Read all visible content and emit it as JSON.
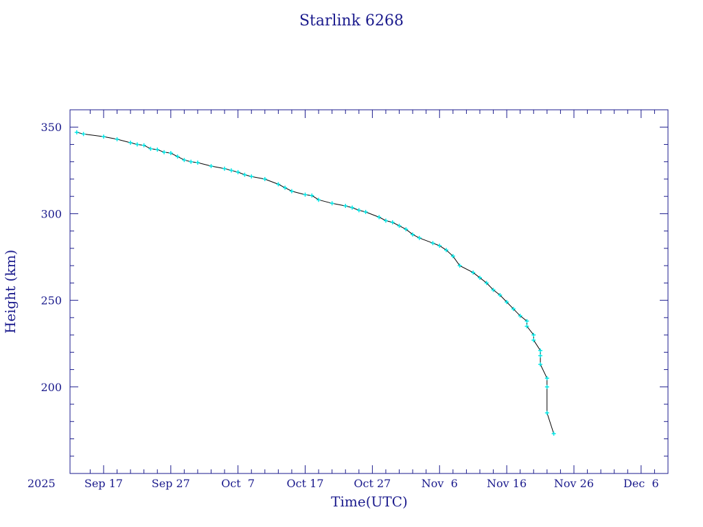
{
  "chart_data": {
    "type": "line",
    "title": "Starlink 6268",
    "xlabel": "Time(UTC)",
    "ylabel": "Height (km)",
    "x_start_label": "2025",
    "xlim": [
      "2025-09-12",
      "2025-12-10"
    ],
    "ylim": [
      150,
      360
    ],
    "x_ticks": [
      {
        "date": "2025-09-17",
        "label": "Sep 17"
      },
      {
        "date": "2025-09-27",
        "label": "Sep 27"
      },
      {
        "date": "2025-10-07",
        "label": "Oct  7"
      },
      {
        "date": "2025-10-17",
        "label": "Oct 17"
      },
      {
        "date": "2025-10-27",
        "label": "Oct 27"
      },
      {
        "date": "2025-11-06",
        "label": "Nov  6"
      },
      {
        "date": "2025-11-16",
        "label": "Nov 16"
      },
      {
        "date": "2025-11-26",
        "label": "Nov 26"
      },
      {
        "date": "2025-12-06",
        "label": "Dec  6"
      }
    ],
    "y_ticks": [
      200,
      250,
      300,
      350
    ],
    "colors": {
      "line": "#000000",
      "points": "#00e5e5",
      "axis": "#1a1a8c"
    },
    "series": [
      {
        "marker": "plus",
        "x": [
          "2025-09-13",
          "2025-09-14",
          "2025-09-17",
          "2025-09-19",
          "2025-09-21",
          "2025-09-22",
          "2025-09-23",
          "2025-09-24",
          "2025-09-25",
          "2025-09-26",
          "2025-09-27",
          "2025-09-28",
          "2025-09-29",
          "2025-09-30",
          "2025-10-01",
          "2025-10-03",
          "2025-10-05",
          "2025-10-06",
          "2025-10-07",
          "2025-10-08",
          "2025-10-09",
          "2025-10-11",
          "2025-10-13",
          "2025-10-14",
          "2025-10-15",
          "2025-10-17",
          "2025-10-18",
          "2025-10-19",
          "2025-10-21",
          "2025-10-23",
          "2025-10-24",
          "2025-10-25",
          "2025-10-26",
          "2025-10-28",
          "2025-10-29",
          "2025-10-30",
          "2025-10-31",
          "2025-11-01",
          "2025-11-02",
          "2025-11-03",
          "2025-11-05",
          "2025-11-06",
          "2025-11-07",
          "2025-11-08",
          "2025-11-09",
          "2025-11-11",
          "2025-11-12",
          "2025-11-13",
          "2025-11-14",
          "2025-11-15",
          "2025-11-16",
          "2025-11-17",
          "2025-11-18",
          "2025-11-19",
          "2025-11-19",
          "2025-11-20",
          "2025-11-20",
          "2025-11-21",
          "2025-11-21",
          "2025-11-21",
          "2025-11-22",
          "2025-11-22",
          "2025-11-22",
          "2025-11-23"
        ],
        "y": [
          347,
          346,
          344.5,
          343,
          341,
          340,
          339.5,
          337.5,
          337,
          335.5,
          335,
          333,
          331,
          330,
          329.5,
          327.5,
          326,
          325,
          324,
          322.5,
          321.5,
          320,
          317,
          315,
          313,
          311,
          310.5,
          308,
          306,
          304.5,
          303.5,
          302,
          301,
          298,
          296,
          295,
          293,
          291,
          288,
          286,
          283,
          281.5,
          279,
          275.5,
          270,
          266,
          263,
          260,
          256,
          253,
          249,
          245,
          241,
          238,
          235,
          230,
          227,
          221,
          218,
          213,
          205,
          200,
          185,
          173
        ]
      }
    ]
  }
}
